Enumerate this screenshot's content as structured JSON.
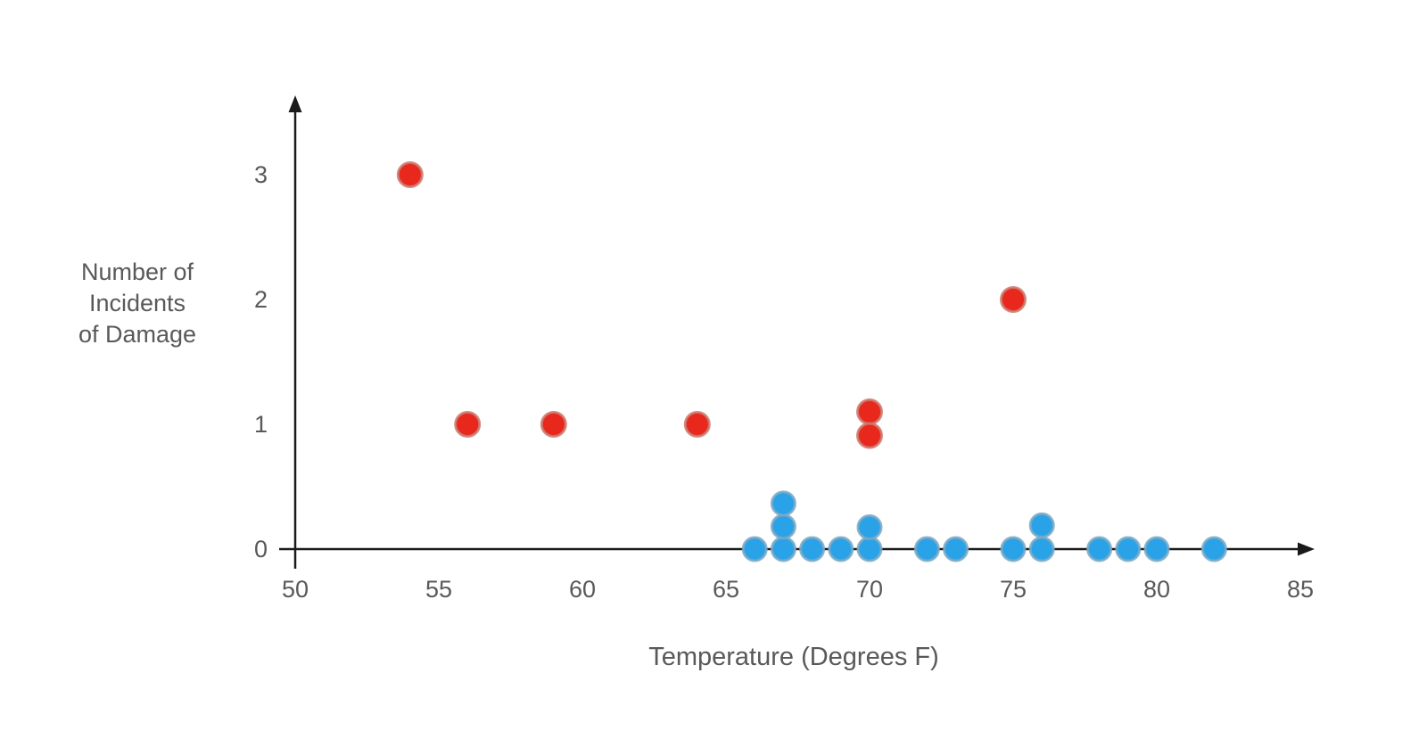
{
  "page": {
    "background": "#ffffff",
    "axis_color": "#1a1a1a",
    "text_color": "#595959"
  },
  "chart_data": {
    "type": "scatter",
    "title": "",
    "xlabel": "Temperature (Degrees F)",
    "ylabel": "Number of Incidents of Damage",
    "ylabel_lines": [
      "Number of",
      "Incidents",
      "of Damage"
    ],
    "xlim": [
      50,
      85
    ],
    "ylim": [
      0,
      3.6
    ],
    "x_ticks": [
      50,
      55,
      60,
      65,
      70,
      75,
      80,
      85
    ],
    "y_ticks": [
      0,
      1,
      2,
      3
    ],
    "grid": false,
    "legend": "none",
    "series": [
      {
        "name": "incidents-of-damage",
        "color": "#e8271d",
        "stroke": "#cc7a6e",
        "radius": 13.5,
        "points": [
          {
            "x": 54,
            "y": 3
          },
          {
            "x": 56,
            "y": 1
          },
          {
            "x": 59,
            "y": 1
          },
          {
            "x": 64,
            "y": 1
          },
          {
            "x": 70,
            "y": 1,
            "plot_y": 1.1
          },
          {
            "x": 70,
            "y": 1,
            "plot_y": 0.91
          },
          {
            "x": 75,
            "y": 2
          }
        ]
      },
      {
        "name": "no-incidents",
        "color": "#2aa2e8",
        "stroke": "#79a9c6",
        "radius": 13,
        "points": [
          {
            "x": 66,
            "y": 0
          },
          {
            "x": 67,
            "y": 0
          },
          {
            "x": 67,
            "y": 0,
            "plot_y": 0.18
          },
          {
            "x": 67,
            "y": 0,
            "plot_y": 0.365
          },
          {
            "x": 68,
            "y": 0
          },
          {
            "x": 69,
            "y": 0
          },
          {
            "x": 70,
            "y": 0
          },
          {
            "x": 70,
            "y": 0,
            "plot_y": 0.175
          },
          {
            "x": 72,
            "y": 0
          },
          {
            "x": 73,
            "y": 0
          },
          {
            "x": 75,
            "y": 0
          },
          {
            "x": 76,
            "y": 0
          },
          {
            "x": 76,
            "y": 0,
            "plot_y": 0.19
          },
          {
            "x": 78,
            "y": 0
          },
          {
            "x": 79,
            "y": 0
          },
          {
            "x": 80,
            "y": 0
          },
          {
            "x": 82,
            "y": 0
          }
        ]
      }
    ]
  }
}
